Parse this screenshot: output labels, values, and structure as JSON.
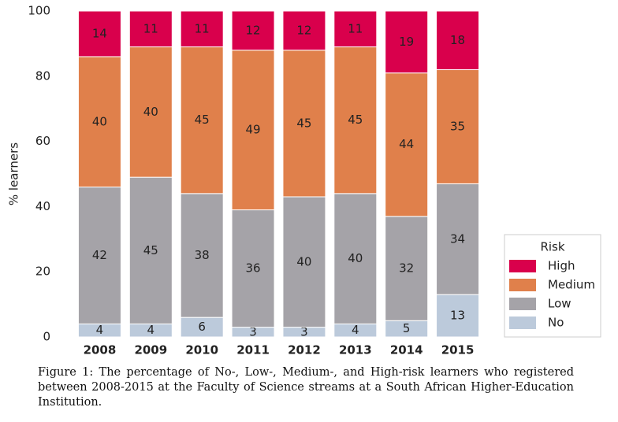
{
  "chart_data": {
    "type": "stacked_bar",
    "ylabel": "% learners",
    "categories": [
      "2008",
      "2009",
      "2010",
      "2011",
      "2012",
      "2013",
      "2014",
      "2015"
    ],
    "series": [
      {
        "name": "No",
        "color": "#bccadb",
        "values": [
          4,
          4,
          6,
          3,
          3,
          4,
          5,
          13
        ]
      },
      {
        "name": "Low",
        "color": "#a5a3a8",
        "values": [
          42,
          45,
          38,
          36,
          40,
          40,
          32,
          34
        ]
      },
      {
        "name": "Medium",
        "color": "#e0804b",
        "values": [
          40,
          40,
          45,
          49,
          45,
          45,
          44,
          35
        ]
      },
      {
        "name": "High",
        "color": "#d9004c",
        "values": [
          14,
          11,
          11,
          12,
          12,
          11,
          19,
          18
        ]
      }
    ],
    "ylim": [
      0,
      100
    ],
    "yticks": [
      0,
      20,
      40,
      60,
      80,
      100
    ],
    "legend": {
      "title": "Risk",
      "position": "right"
    }
  },
  "caption": "Figure 1:  The percentage of No-, Low-, Medium-, and High-risk learners who registered between 2008-2015 at the Faculty of Science streams at a South African Higher-Education Institution."
}
